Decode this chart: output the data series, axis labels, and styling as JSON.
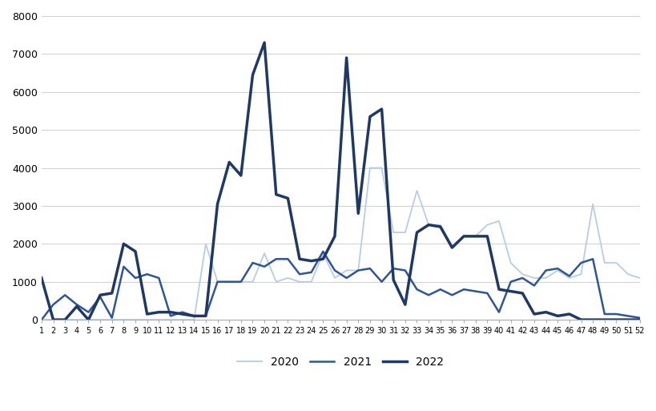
{
  "weeks": [
    1,
    2,
    3,
    4,
    5,
    6,
    7,
    8,
    9,
    10,
    11,
    12,
    13,
    14,
    15,
    16,
    17,
    18,
    19,
    20,
    21,
    22,
    23,
    24,
    25,
    26,
    27,
    28,
    29,
    30,
    31,
    32,
    33,
    34,
    35,
    36,
    37,
    38,
    39,
    40,
    41,
    42,
    43,
    44,
    45,
    46,
    47,
    48,
    49,
    50,
    51,
    52
  ],
  "y2020": [
    0,
    0,
    0,
    0,
    0,
    0,
    0,
    0,
    0,
    0,
    0,
    0,
    0,
    0,
    2000,
    1000,
    1000,
    1000,
    1000,
    1750,
    1000,
    1100,
    1000,
    1000,
    1750,
    1100,
    1300,
    1300,
    4000,
    4000,
    2300,
    2300,
    3400,
    2500,
    2500,
    1950,
    2200,
    2200,
    2500,
    2600,
    1500,
    1200,
    1100,
    1100,
    1300,
    1100,
    1200,
    3050,
    1500,
    1500,
    1200,
    1100
  ],
  "y2021": [
    0,
    400,
    650,
    400,
    200,
    600,
    50,
    1400,
    1100,
    1200,
    1100,
    100,
    200,
    100,
    100,
    1000,
    1000,
    1000,
    1500,
    1400,
    1600,
    1600,
    1200,
    1250,
    1800,
    1300,
    1100,
    1300,
    1350,
    1000,
    1350,
    1300,
    800,
    650,
    800,
    650,
    800,
    750,
    700,
    200,
    1000,
    1100,
    900,
    1300,
    1350,
    1150,
    1500,
    1600,
    150,
    150,
    100,
    50
  ],
  "y2022": [
    1100,
    0,
    0,
    350,
    0,
    650,
    700,
    2000,
    1800,
    150,
    200,
    200,
    150,
    100,
    100,
    3050,
    4150,
    3800,
    6450,
    7300,
    3300,
    3200,
    1600,
    1550,
    1600,
    2200,
    6900,
    2800,
    5350,
    5550,
    1050,
    400,
    2300,
    2500,
    2450,
    1900,
    2200,
    2200,
    2200,
    800,
    750,
    700,
    150,
    200,
    100,
    150,
    0,
    0,
    0,
    0,
    0,
    0
  ],
  "color_2020": "#b8cce4",
  "color_2021": "#2f5597",
  "color_2022": "#1f3864",
  "lw_2020": 1.3,
  "lw_2021": 1.8,
  "lw_2022": 2.5,
  "ylim": [
    0,
    8000
  ],
  "yticks": [
    0,
    1000,
    2000,
    3000,
    4000,
    5000,
    6000,
    7000,
    8000
  ],
  "background_color": "#ffffff",
  "legend_labels": [
    "2020",
    "2021",
    "2022"
  ],
  "grid_color": "#d0d0d0"
}
